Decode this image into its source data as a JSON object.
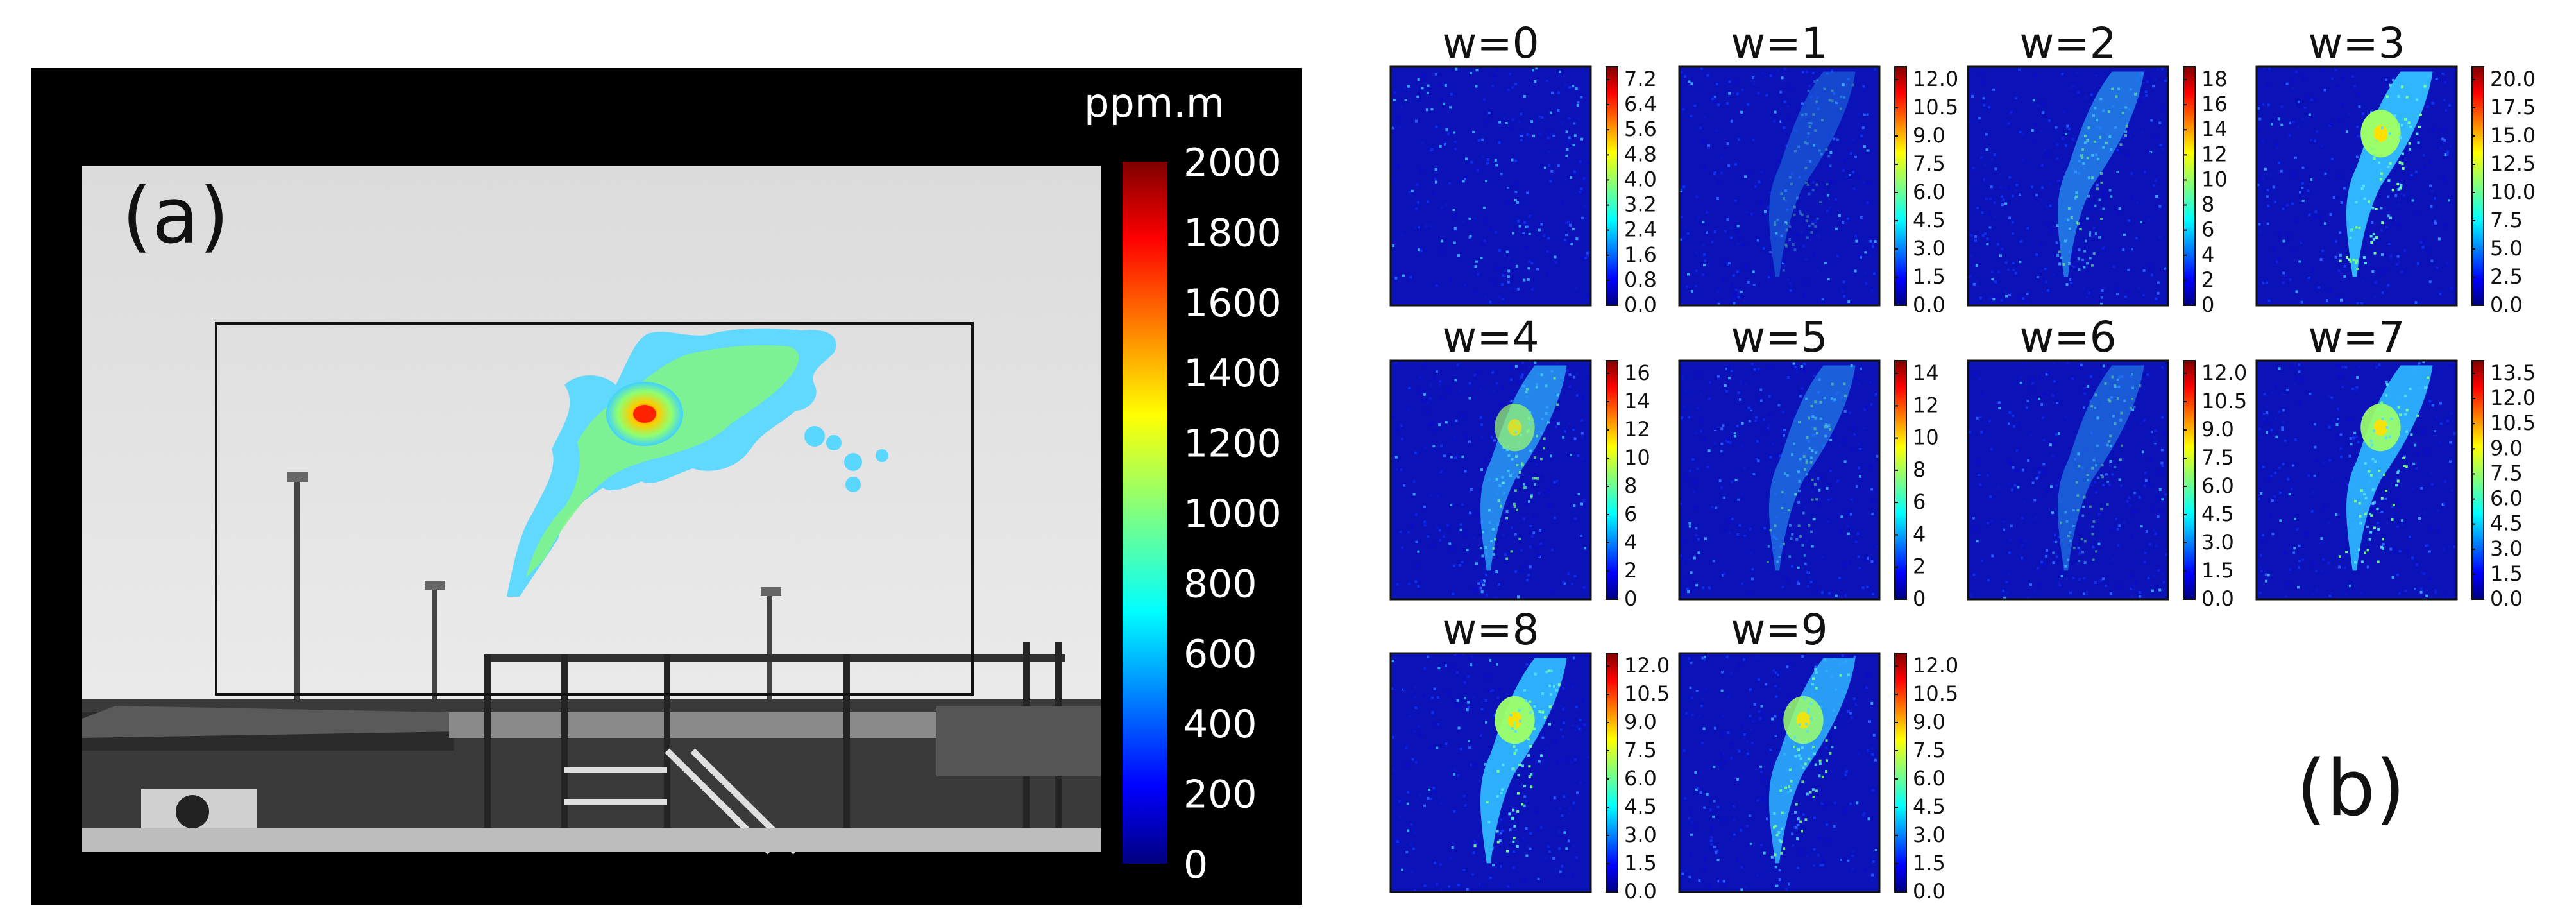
{
  "panel_a": {
    "label": "(a)",
    "unit": "ppm.m",
    "colorbar_ticks": [
      "2000",
      "1800",
      "1600",
      "1400",
      "1200",
      "1000",
      "800",
      "600",
      "400",
      "200",
      "0"
    ],
    "colormap": [
      "#00007f",
      "#0000ff",
      "#007fff",
      "#00ffff",
      "#7fff7f",
      "#ffff00",
      "#ff7f00",
      "#ff0000",
      "#7f0000"
    ],
    "background": "#000000"
  },
  "panel_b": {
    "label": "(b)",
    "panels": [
      {
        "title": "w=0",
        "ticks": [
          "7.2",
          "6.4",
          "5.6",
          "4.8",
          "4.0",
          "3.2",
          "2.4",
          "1.6",
          "0.8",
          "0.0"
        ],
        "plume": 0
      },
      {
        "title": "w=1",
        "ticks": [
          "12.0",
          "10.5",
          "9.0",
          "7.5",
          "6.0",
          "4.5",
          "3.0",
          "1.5",
          "0.0"
        ],
        "plume": 0.1
      },
      {
        "title": "w=2",
        "ticks": [
          "18",
          "16",
          "14",
          "12",
          "10",
          "8",
          "6",
          "4",
          "2",
          "0"
        ],
        "plume": 0.45
      },
      {
        "title": "w=3",
        "ticks": [
          "20.0",
          "17.5",
          "15.0",
          "12.5",
          "10.0",
          "7.5",
          "5.0",
          "2.5",
          "0.0"
        ],
        "plume": 1
      },
      {
        "title": "w=4",
        "ticks": [
          "16",
          "14",
          "12",
          "10",
          "8",
          "6",
          "4",
          "2",
          "0"
        ],
        "plume": 0.6
      },
      {
        "title": "w=5",
        "ticks": [
          "14",
          "12",
          "10",
          "8",
          "6",
          "4",
          "2",
          "0"
        ],
        "plume": 0.3
      },
      {
        "title": "w=6",
        "ticks": [
          "12.0",
          "10.5",
          "9.0",
          "7.5",
          "6.0",
          "4.5",
          "3.0",
          "1.5",
          "0.0"
        ],
        "plume": 0.25
      },
      {
        "title": "w=7",
        "ticks": [
          "13.5",
          "12.0",
          "10.5",
          "9.0",
          "7.5",
          "6.0",
          "4.5",
          "3.0",
          "1.5",
          "0.0"
        ],
        "plume": 0.9
      },
      {
        "title": "w=8",
        "ticks": [
          "12.0",
          "10.5",
          "9.0",
          "7.5",
          "6.0",
          "4.5",
          "3.0",
          "1.5",
          "0.0"
        ],
        "plume": 0.95
      },
      {
        "title": "w=9",
        "ticks": [
          "12.0",
          "10.5",
          "9.0",
          "7.5",
          "6.0",
          "4.5",
          "3.0",
          "1.5",
          "0.0"
        ],
        "plume": 0.8
      }
    ]
  }
}
